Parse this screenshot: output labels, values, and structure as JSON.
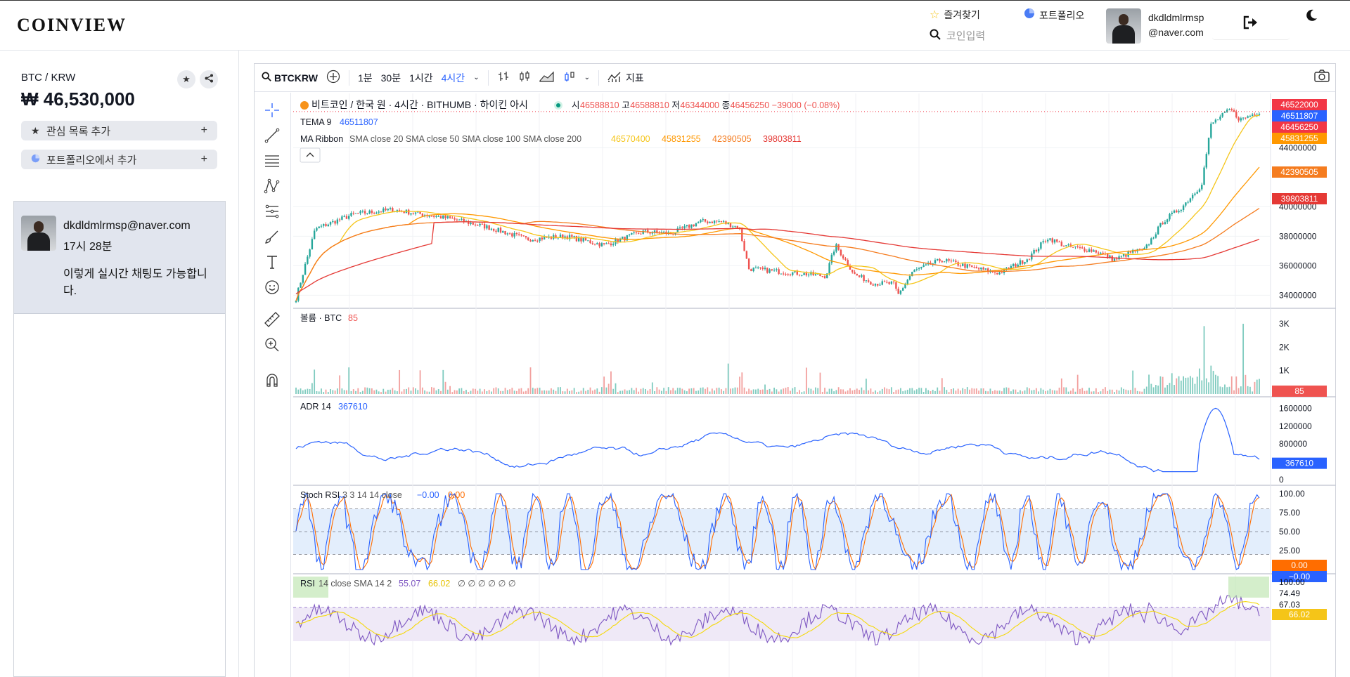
{
  "header": {
    "logo": "COINVIEW",
    "favorites_label": "즐겨찾기",
    "portfolio_label": "포트폴리오",
    "search_placeholder": "코인입력",
    "user_name": "dkdldmlrmsp",
    "user_domain": "@naver.com",
    "icons": {
      "favorites": "star-icon",
      "portfolio": "pie-chart-icon",
      "search": "search-icon",
      "logout": "logout-icon",
      "theme": "moon-icon"
    }
  },
  "left": {
    "pair": "BTC / KRW",
    "price": "₩ 46,530,000",
    "add_watchlist": "관심 목록 추가",
    "add_portfolio": "포트폴리오에서 추가",
    "plus": "+",
    "chat": {
      "email": "dkdldmlrmsp@naver.com",
      "time": "17시 28분",
      "text": "이렇게 실시간 채팅도 가능합니다."
    }
  },
  "toolbar": {
    "symbol": "BTCKRW",
    "intervals": [
      "1분",
      "30분",
      "1시간",
      "4시간"
    ],
    "active_interval": "4시간",
    "indicators_label": "지표"
  },
  "chart_data": {
    "type": "candlestick",
    "title": "비트코인 / 한국 원 · 4시간 · BITHUMB · 하이킨 아시",
    "ohlc": {
      "o_label": "시",
      "o": "46588810",
      "h_label": "고",
      "h": "46588810",
      "l_label": "저",
      "l": "46344000",
      "c_label": "종",
      "c": "46456250",
      "change": "−39000 (−0.08%)"
    },
    "tema": {
      "label": "TEMA",
      "param": "9",
      "value": "46511807"
    },
    "ma_ribbon": {
      "label": "MA Ribbon",
      "params": "SMA close 20 SMA close 50 SMA close 100 SMA close 200",
      "values": [
        "46570400",
        "45831255",
        "42390505",
        "39803811"
      ]
    },
    "price_axis": {
      "ticks": [
        "44000000",
        "40000000",
        "38000000",
        "36000000",
        "34000000"
      ],
      "badges": [
        {
          "text": "46522000",
          "color": "#f23645"
        },
        {
          "text": "46511807",
          "color": "#2962ff"
        },
        {
          "text": "46456250",
          "color": "#f23645"
        },
        {
          "text": "45831255",
          "color": "#ff9800"
        },
        {
          "text": "42390505",
          "color": "#f57c1f"
        },
        {
          "text": "39803811",
          "color": "#e53935"
        }
      ]
    },
    "volume": {
      "label": "볼륨 · BTC",
      "value": "85",
      "ticks": [
        "3K",
        "2K",
        "1K"
      ]
    },
    "adr": {
      "label": "ADR",
      "param": "14",
      "value": "367610",
      "ticks": [
        "1600000",
        "1200000",
        "800000",
        "0"
      ]
    },
    "stoch_rsi": {
      "label": "Stoch RSI",
      "params": "3 3 14 14 close",
      "k": "−0.00",
      "d": "0.00",
      "ticks": [
        "100.00",
        "75.00",
        "50.00",
        "25.00"
      ],
      "badge_d": "0.00",
      "badge_k": "−0.00"
    },
    "rsi": {
      "label": "RSI",
      "params": "14 close SMA 14 2",
      "value": "55.07",
      "sma": "66.02",
      "extras": "∅ ∅ ∅ ∅ ∅ ∅",
      "ticks": [
        "100.00",
        "74.49",
        "67.03"
      ],
      "badge": "66.02"
    },
    "colors": {
      "up": "#26a69a",
      "down": "#ef5350",
      "tema": "#2962ff",
      "ma20": "#f5c518",
      "ma50": "#ff9800",
      "ma100": "#f57c1f",
      "ma200": "#e53935",
      "adr": "#2962ff",
      "stoch_k": "#2962ff",
      "stoch_d": "#ff6d00",
      "rsi": "#7e57c2"
    }
  }
}
